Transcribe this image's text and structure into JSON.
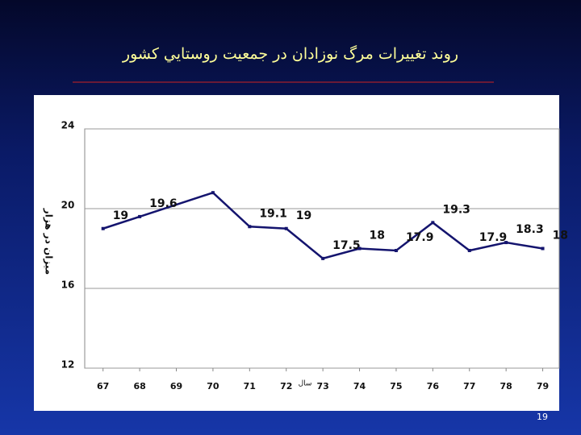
{
  "chart_data": {
    "type": "line",
    "title": "روند تغييرات مرگ نوزادان در جمعيت روستايي كشور",
    "y_label": "ميزان در هزار",
    "x_label": "سال",
    "page_number": "19",
    "x": [
      67,
      68,
      70,
      71,
      72,
      73,
      74,
      75,
      76,
      77,
      78,
      79
    ],
    "values": [
      19,
      19.6,
      20.8,
      19.1,
      19,
      17.5,
      18,
      17.9,
      19.3,
      17.9,
      18.3,
      18
    ],
    "value_labels": [
      "19",
      "19.6",
      null,
      "19.1",
      "19",
      "17.5",
      "18",
      "17.9",
      "19.3",
      "17.9",
      "18.3",
      "18"
    ],
    "color": "#14146e",
    "xlim": [
      66.5,
      79.45
    ],
    "xticks": [
      67,
      68,
      69,
      70,
      71,
      72,
      73,
      74,
      75,
      76,
      77,
      78,
      79
    ],
    "ylim": [
      12,
      24
    ],
    "yticks": [
      12,
      16,
      20,
      24
    ],
    "grid": true
  }
}
